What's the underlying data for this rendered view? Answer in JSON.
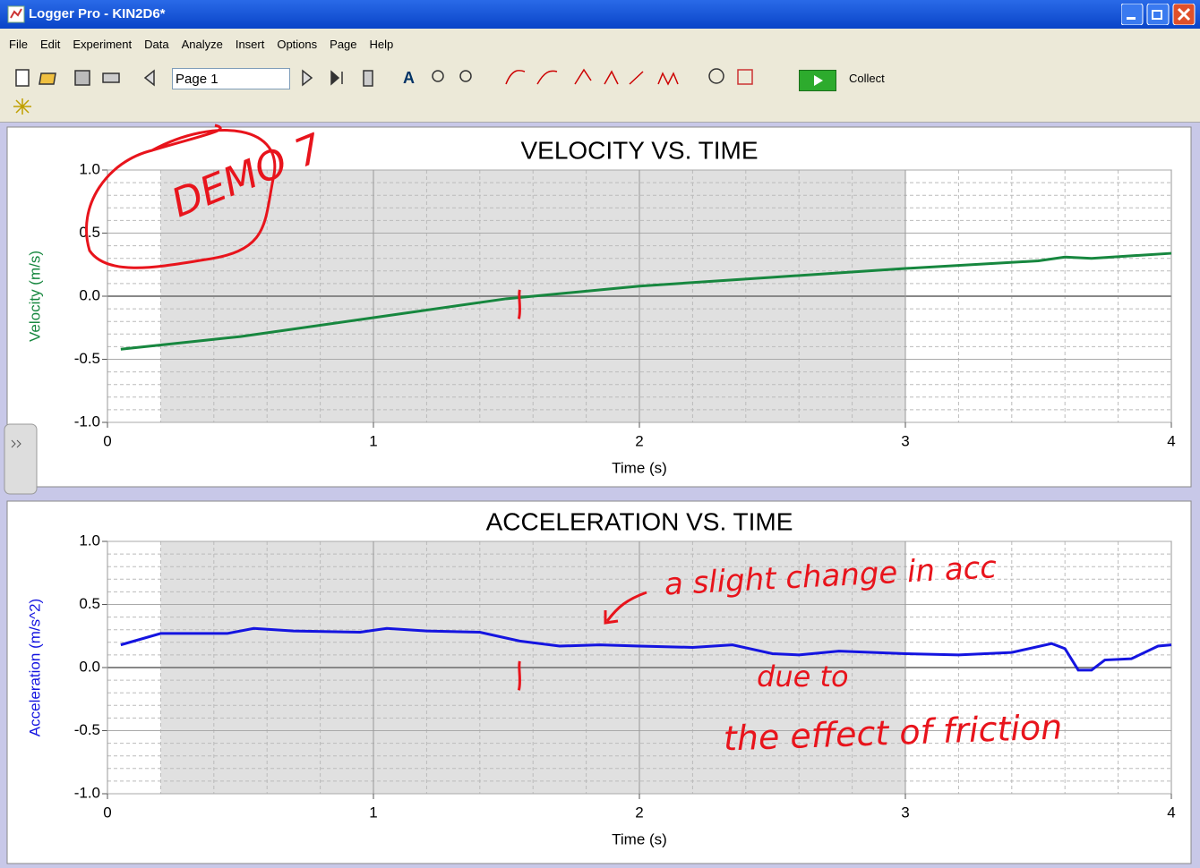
{
  "window": {
    "title": "Logger Pro - KIN2D6*"
  },
  "menu": [
    "File",
    "Edit",
    "Experiment",
    "Data",
    "Analyze",
    "Insert",
    "Options",
    "Page",
    "Help"
  ],
  "toolbar": {
    "page_select": "Page 1",
    "collect": "Collect"
  },
  "chart_data": [
    {
      "type": "line",
      "title": "VELOCITY VS. TIME",
      "xlabel": "Time (s)",
      "ylabel": "Velocity (m/s)",
      "color": "#17873f",
      "x": [
        0.05,
        0.5,
        1.0,
        1.5,
        2.0,
        2.5,
        3.0,
        3.5,
        3.6,
        3.7,
        4.0
      ],
      "values": [
        -0.42,
        -0.32,
        -0.17,
        -0.02,
        0.08,
        0.15,
        0.22,
        0.28,
        0.31,
        0.3,
        0.34
      ],
      "xlim": [
        0,
        4
      ],
      "xticks": [
        0,
        1,
        2,
        3,
        4
      ],
      "ylim": [
        -1,
        1
      ],
      "yticks": [
        {
          "value": -1,
          "label": "-1.0"
        },
        {
          "value": -0.5,
          "label": "-0.5"
        },
        {
          "value": 0,
          "label": "0.0"
        },
        {
          "value": 0.5,
          "label": "0.5"
        },
        {
          "value": 1,
          "label": "1.0"
        }
      ],
      "grid": true,
      "selection": [
        0.2,
        3.0
      ],
      "marker_x": 1.55,
      "annotations": [
        "DEMO 7"
      ]
    },
    {
      "type": "line",
      "title": "ACCELERATION VS. TIME",
      "xlabel": "Time (s)",
      "ylabel": "Acceleration (m/s^2)",
      "color": "#1414e0",
      "x": [
        0.05,
        0.2,
        0.45,
        0.55,
        0.7,
        0.95,
        1.05,
        1.2,
        1.4,
        1.55,
        1.7,
        1.85,
        2.0,
        2.2,
        2.35,
        2.5,
        2.6,
        2.75,
        3.0,
        3.2,
        3.4,
        3.55,
        3.6,
        3.65,
        3.7,
        3.75,
        3.85,
        3.95,
        4.0
      ],
      "values": [
        0.18,
        0.27,
        0.27,
        0.31,
        0.29,
        0.28,
        0.31,
        0.29,
        0.28,
        0.21,
        0.17,
        0.18,
        0.17,
        0.16,
        0.18,
        0.11,
        0.1,
        0.13,
        0.11,
        0.1,
        0.12,
        0.19,
        0.15,
        -0.02,
        -0.02,
        0.06,
        0.07,
        0.17,
        0.18
      ],
      "xlim": [
        0,
        4
      ],
      "xticks": [
        0,
        1,
        2,
        3,
        4
      ],
      "ylim": [
        -1,
        1
      ],
      "yticks": [
        {
          "value": -1,
          "label": "-1.0"
        },
        {
          "value": -0.5,
          "label": "-0.5"
        },
        {
          "value": 0,
          "label": "0.0"
        },
        {
          "value": 0.5,
          "label": "0.5"
        },
        {
          "value": 1,
          "label": "1.0"
        }
      ],
      "grid": true,
      "selection": [
        0.2,
        3.0
      ],
      "marker_x": 1.55,
      "annotations": [
        "a slight change in acc",
        "due to",
        "the effect of friction"
      ]
    }
  ]
}
